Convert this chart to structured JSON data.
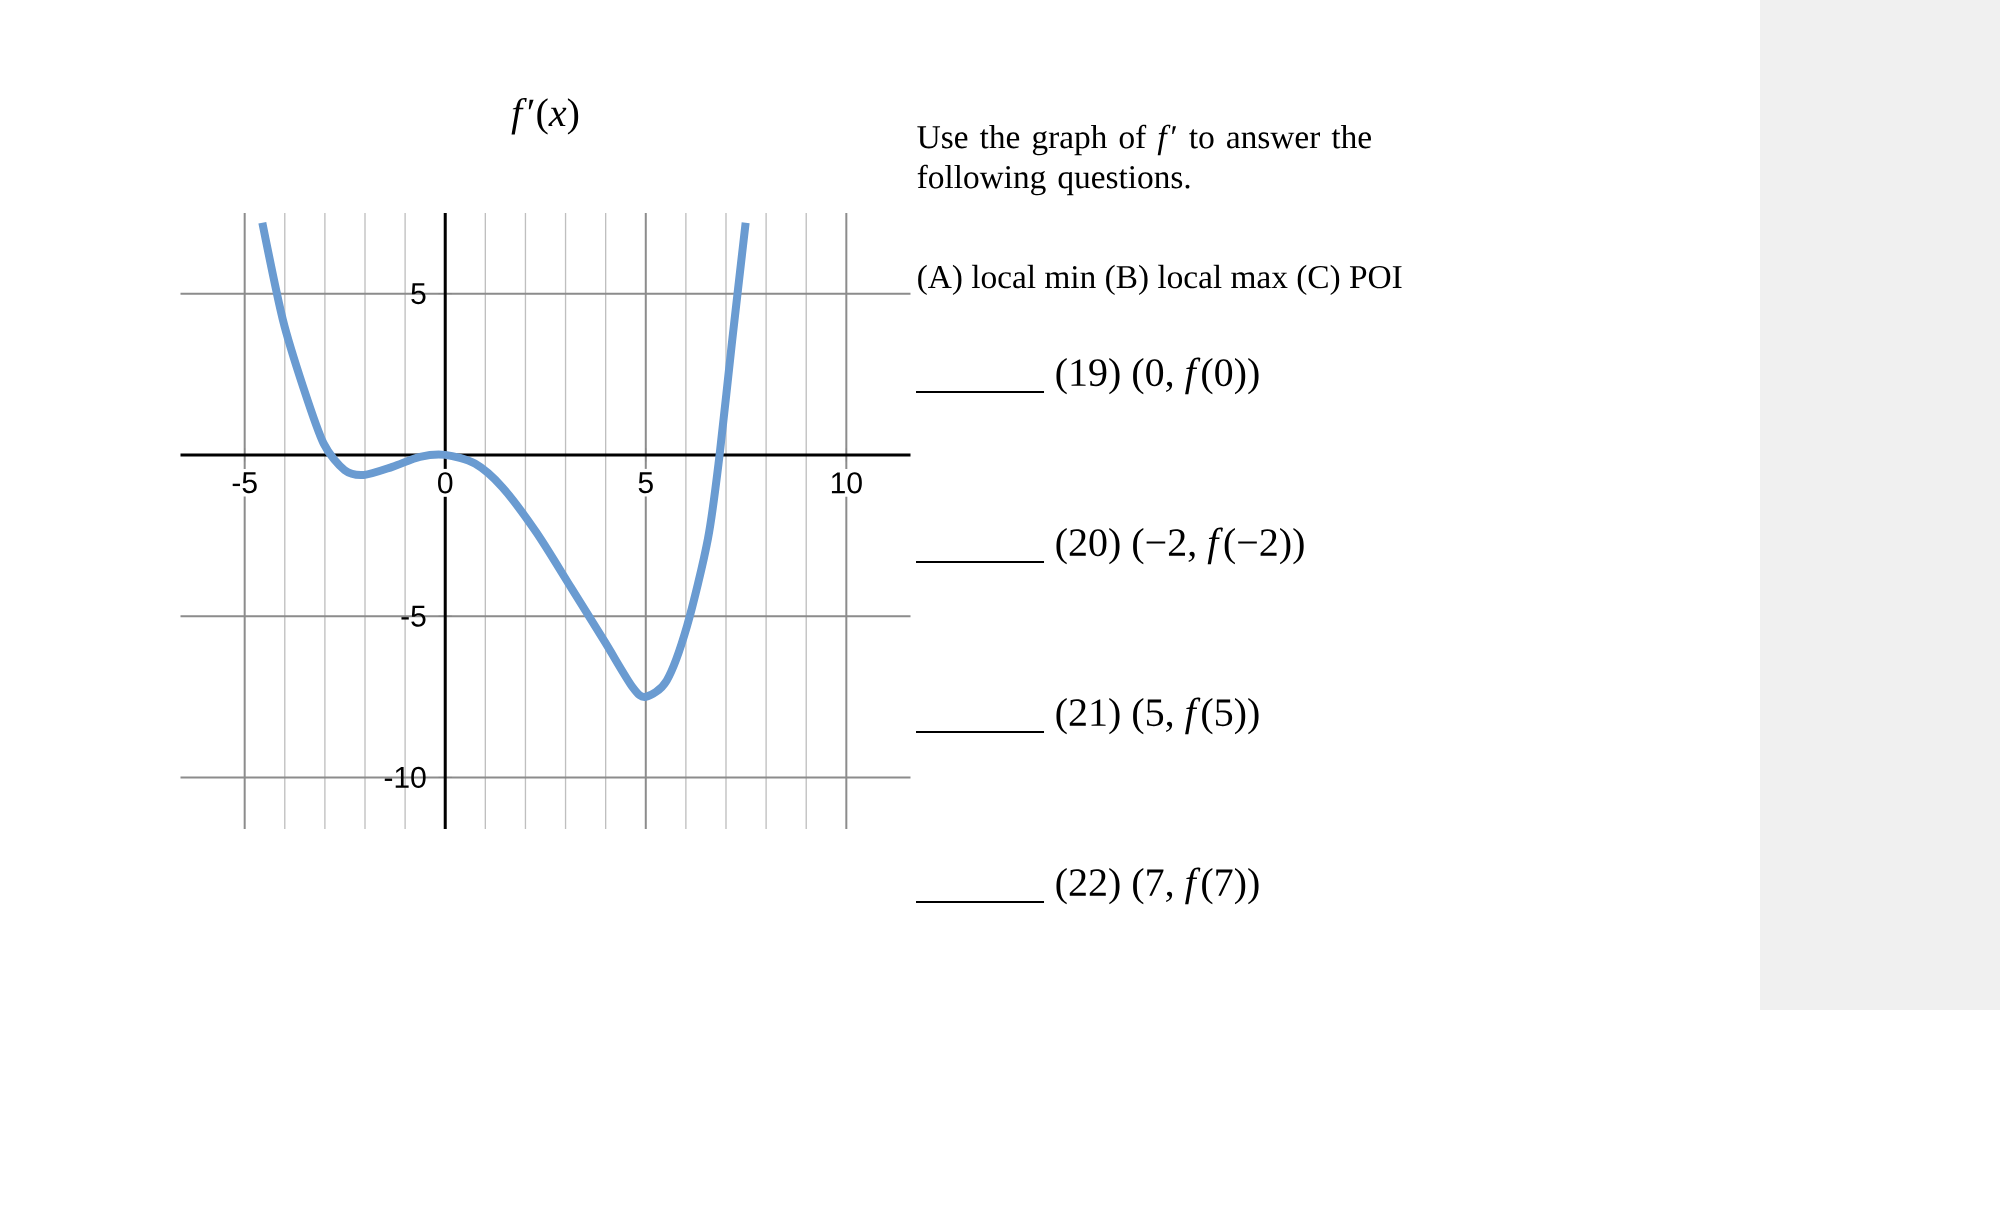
{
  "chart_data": {
    "type": "line",
    "title": "*f*′(*x*)",
    "x": [
      -4.56,
      -4.05,
      -3.54,
      -3.03,
      -2.51,
      -2.03,
      -1.32,
      -0.63,
      0,
      0.74,
      1.42,
      2.27,
      3.13,
      3.98,
      4.67,
      5,
      5.52,
      6.03,
      6.55,
      6.84,
      7.15,
      7.49
    ],
    "series": [
      {
        "color": "#6a9bd1",
        "values": [
          7.2,
          4.2,
          2.1,
          0.35,
          -0.47,
          -0.62,
          -0.37,
          -0.06,
          0,
          -0.27,
          -1.0,
          -2.4,
          -4.1,
          -5.8,
          -7.2,
          -7.5,
          -7.0,
          -5.3,
          -2.6,
          0,
          3.5,
          7.2
        ]
      }
    ],
    "xlim": [
      -6.6,
      11.6
    ],
    "ylim": [
      -11.6,
      7.5
    ],
    "xticks": [
      -5,
      0,
      5,
      10
    ],
    "yticks": [
      -10,
      -5,
      5
    ],
    "grid": true,
    "annotations": [
      "Use the graph of *f*′ to answer the following questions.",
      "(A) local min   (B) local max   (C) POI",
      "(19) (0, *f*(0))",
      "(20) (−2, *f*(−2))",
      "(21) (5, *f*(5))",
      "(22) (7, *f*(7))"
    ]
  }
}
